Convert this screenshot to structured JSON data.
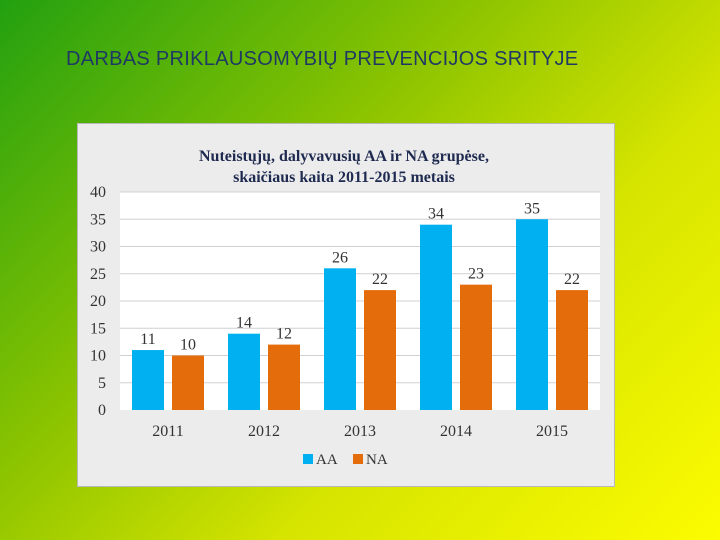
{
  "slide": {
    "title": "DARBAS PRIKLAUSOMYBIŲ PREVENCIJOS SRITYJE"
  },
  "colors": {
    "series_aa": "#00b0f0",
    "series_na": "#e46c0a",
    "grid": "#d0d0d0",
    "plot_bg": "#ffffff"
  },
  "chart_data": {
    "type": "bar",
    "title_lines": [
      "Nuteistųjų, dalyvavusių AA ir NA grupėse,",
      "skaičiaus kaita 2011-2015 metais"
    ],
    "categories": [
      "2011",
      "2012",
      "2013",
      "2014",
      "2015"
    ],
    "series": [
      {
        "name": "AA",
        "values": [
          11,
          14,
          26,
          34,
          35
        ]
      },
      {
        "name": "NA",
        "values": [
          10,
          12,
          22,
          23,
          22
        ]
      }
    ],
    "ylim": [
      0,
      40
    ],
    "yticks": [
      0,
      5,
      10,
      15,
      20,
      25,
      30,
      35,
      40
    ],
    "grid": true,
    "legend_position": "bottom"
  }
}
